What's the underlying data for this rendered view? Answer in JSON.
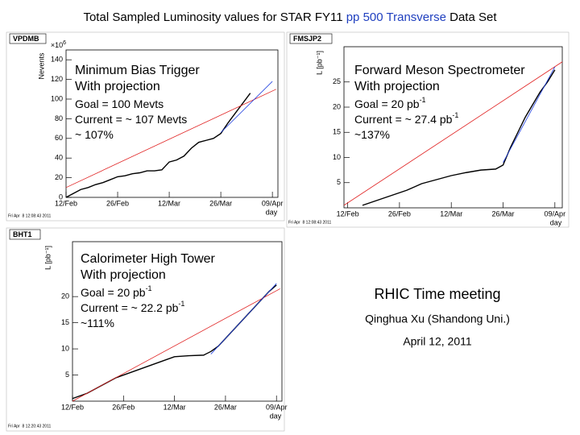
{
  "title_parts": [
    "Total Sampled Luminosity values for STAR FY11 ",
    "pp 500 Transverse",
    " Data Set"
  ],
  "title_colors": [
    "#000000",
    "#1f3fbf",
    "#000000"
  ],
  "side_text": {
    "meeting": "RHIC Time meeting",
    "author": "Qinghua Xu (Shandong Uni.)",
    "date": "April 12, 2011"
  },
  "chart_data": [
    {
      "type": "line",
      "title": "VPDMB",
      "ylabel": "Nevents",
      "y_multiplier": {
        "text": "×10",
        "sup": "6"
      },
      "xlabel": "day",
      "timestamp": "Fri Apr  8 12:08:43 2011",
      "annotations": [
        {
          "text": "Minimum Bias Trigger"
        },
        {
          "text": "With projection"
        },
        {
          "text": "Goal = 100 Mevts"
        },
        {
          "text": "Current = ~ 107 Mevts"
        },
        {
          "text": "~ 107%"
        }
      ],
      "xlim": [
        0,
        57.5
      ],
      "ylim": [
        0,
        150
      ],
      "xticks": [
        {
          "value": 0,
          "label": "12/Feb"
        },
        {
          "value": 14,
          "label": "26/Feb"
        },
        {
          "value": 28,
          "label": "12/Mar"
        },
        {
          "value": 42,
          "label": "26/Mar"
        },
        {
          "value": 56,
          "label": "09/Apr"
        }
      ],
      "yticks": [
        0,
        20,
        40,
        60,
        80,
        100,
        120,
        140
      ],
      "series": [
        {
          "color": "#000000",
          "x": [
            0,
            2,
            4,
            6,
            8,
            10,
            12,
            14,
            16,
            18,
            20,
            22,
            24,
            26,
            28,
            30,
            32,
            34,
            36,
            38,
            40,
            42,
            44,
            46,
            48,
            50
          ],
          "values": [
            0,
            4,
            8,
            10,
            13,
            15,
            18,
            21,
            22,
            24,
            25,
            27,
            27,
            28,
            36,
            38,
            42,
            50,
            56,
            58,
            60,
            65,
            76,
            86,
            96,
            106
          ]
        },
        {
          "color": "#e02020",
          "x": [
            0,
            57
          ],
          "values": [
            10,
            110
          ]
        },
        {
          "color": "#2040e0",
          "x": [
            42,
            56
          ],
          "values": [
            66,
            118
          ]
        }
      ]
    },
    {
      "type": "line",
      "title": "FMSJP2",
      "ylabel": "L [pb⁻¹]",
      "xlabel": "day",
      "timestamp": "Fri Apr  8 12:08:43 2011",
      "annotations": [
        {
          "text": "Forward Meson Spectrometer"
        },
        {
          "text": "With projection"
        },
        {
          "text": "Goal = 20 pb",
          "sup": "-1"
        },
        {
          "text": "Current = ~ 27.4 pb",
          "sup": "-1"
        },
        {
          "text": "~137%"
        }
      ],
      "xlim": [
        -1,
        58
      ],
      "ylim": [
        0,
        32
      ],
      "xticks": [
        {
          "value": 0,
          "label": "12/Feb"
        },
        {
          "value": 14,
          "label": "26/Feb"
        },
        {
          "value": 28,
          "label": "12/Mar"
        },
        {
          "value": 42,
          "label": "26/Mar"
        },
        {
          "value": 56,
          "label": "09/Apr"
        }
      ],
      "yticks": [
        5,
        10,
        15,
        20,
        25
      ],
      "series": [
        {
          "color": "#000000",
          "x": [
            4,
            8,
            12,
            16,
            20,
            24,
            28,
            32,
            36,
            40,
            42,
            44,
            46,
            48,
            50,
            52,
            54,
            56
          ],
          "values": [
            0.5,
            1.5,
            2.5,
            3.5,
            4.8,
            5.6,
            6.4,
            7,
            7.5,
            7.7,
            8.5,
            12,
            15,
            18,
            20.5,
            23,
            25,
            27.4
          ]
        },
        {
          "color": "#e02020",
          "x": [
            -1,
            58
          ],
          "values": [
            0.5,
            29
          ]
        },
        {
          "color": "#2040e0",
          "x": [
            42,
            56
          ],
          "values": [
            9,
            28
          ]
        }
      ]
    },
    {
      "type": "line",
      "title": "BHT1",
      "ylabel": "L [pb⁻¹]",
      "xlabel": "day",
      "timestamp": "Fri Apr  8 12:20:43 2011",
      "annotations": [
        {
          "text": "Calorimeter High Tower"
        },
        {
          "text": "With projection"
        },
        {
          "text": "Goal = 20 pb",
          "sup": "-1"
        },
        {
          "text": "Current = ~ 22.2 pb",
          "sup": "-1"
        },
        {
          "text": "~111%"
        }
      ],
      "xlim": [
        0,
        57.5
      ],
      "ylim": [
        0,
        30.5
      ],
      "xticks": [
        {
          "value": 0,
          "label": "12/Feb"
        },
        {
          "value": 14,
          "label": "26/Feb"
        },
        {
          "value": 28,
          "label": "12/Mar"
        },
        {
          "value": 42,
          "label": "26/Mar"
        },
        {
          "value": 56,
          "label": "09/Apr"
        }
      ],
      "yticks": [
        5,
        10,
        15,
        20
      ],
      "series": [
        {
          "color": "#000000",
          "x": [
            0,
            4,
            8,
            12,
            16,
            20,
            24,
            28,
            32,
            36,
            38,
            40,
            42,
            44,
            46,
            48,
            50,
            52,
            54,
            56
          ],
          "values": [
            0.5,
            1.5,
            3,
            4.5,
            5.5,
            6.5,
            7.5,
            8.5,
            8.7,
            8.8,
            9.5,
            10.5,
            12,
            13.5,
            15,
            16.5,
            18,
            19.5,
            21,
            22.2
          ]
        },
        {
          "color": "#e02020",
          "x": [
            0,
            57
          ],
          "values": [
            0,
            21.5
          ]
        },
        {
          "color": "#2040e0",
          "x": [
            38,
            56
          ],
          "values": [
            9,
            22.5
          ]
        }
      ]
    }
  ]
}
